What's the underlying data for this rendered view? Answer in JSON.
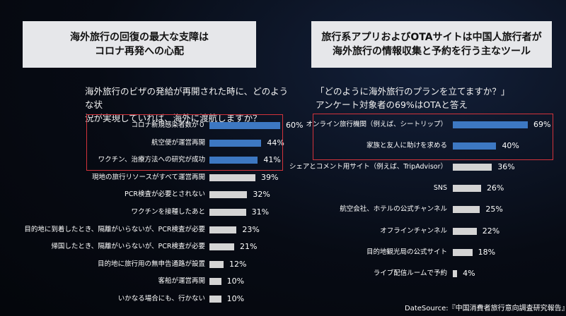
{
  "chart_data": [
    {
      "type": "bar",
      "orientation": "horizontal",
      "title": [
        "海外旅行の回復の最大な支障は",
        "コロナ再発への心配"
      ],
      "question": [
        "海外旅行のビザの発給が再開された時に、どのような状",
        "況が実現していれば、海外に渡航しますか？"
      ],
      "categories": [
        "コロナ新規感染者数が０",
        "航空便が運営再開",
        "ワクチン、治療方法への研究が成功",
        "現地の旅行リソースがすべて運営再開",
        "PCR検査が必要とされない",
        "ワクチンを接種したあと",
        "目的地に到着したとき、隔離がいらないが、PCR検査が必要",
        "帰国したとき、隔離がいらないが、PCR検査が必要",
        "目的地に旅行用の無申告通路が設置",
        "客船が運営再開",
        "いかなる場合にも、行かない"
      ],
      "values": [
        60,
        44,
        41,
        39,
        32,
        31,
        23,
        21,
        12,
        10,
        10
      ],
      "value_labels": [
        "60%",
        "44%",
        "41%",
        "39%",
        "32%",
        "31%",
        "23%",
        "21%",
        "12%",
        "10%",
        "10%"
      ],
      "highlighted_count": 3,
      "colors": {
        "highlight": "#3d78c2",
        "normal": "#d4d4d4",
        "box": "#d3333b"
      },
      "xlim": [
        0,
        60
      ],
      "grid": false
    },
    {
      "type": "bar",
      "orientation": "horizontal",
      "title": [
        "旅行系アプリおよびOTAサイトは中国人旅行者が",
        "海外旅行の情報収集と予約を行う主なツール"
      ],
      "question": [
        "「どのように海外旅行のプランを立てますか？」",
        "アンケート対象者の69%はOTAと答え"
      ],
      "categories": [
        "オンライン旅行機関（例えば、シートリップ）",
        "家族と友人に助けを求める",
        "シェアとコメント用サイト（例えば、TripAdvisor）",
        "SNS",
        "航空会社、ホテルの公式チャンネル",
        "オフラインチャンネル",
        "目的地観光局の公式サイト",
        "ライブ配信ルームで予約"
      ],
      "values": [
        69,
        40,
        36,
        26,
        25,
        22,
        18,
        4
      ],
      "value_labels": [
        "69%",
        "40%",
        "36%",
        "26%",
        "25%",
        "22%",
        "18%",
        "4%"
      ],
      "highlighted_count": 2,
      "colors": {
        "highlight": "#3d78c2",
        "normal": "#d4d4d4",
        "box": "#d3333b"
      },
      "xlim": [
        0,
        69
      ],
      "grid": false
    }
  ],
  "source": "DateSource:『中国消費者旅行意向調査研究報告』"
}
